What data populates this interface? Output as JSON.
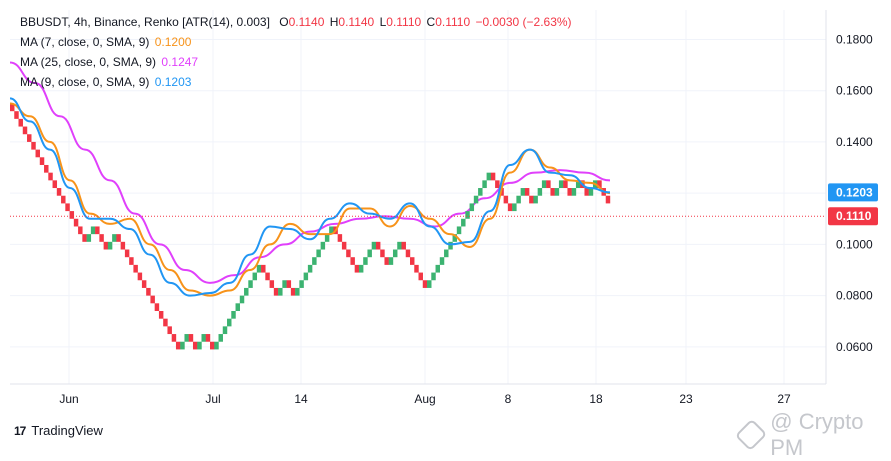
{
  "header": {
    "symbol_line": "BBUSDT, 4h, Binance, Renko [ATR(14), 0.003]",
    "o_label": "O",
    "o_value": "0.1140",
    "h_label": "H",
    "h_value": "0.1140",
    "l_label": "L",
    "l_value": "0.1110",
    "c_label": "C",
    "c_value": "0.1110",
    "change": "−0.0030 (−2.63%)"
  },
  "indicators": [
    {
      "label": "MA (7, close, 0, SMA, 9)",
      "value": "0.1200",
      "color": "#f7931a"
    },
    {
      "label": "MA (25, close, 0, SMA, 9)",
      "value": "0.1247",
      "color": "#e040fb"
    },
    {
      "label": "MA (9, close, 0, SMA, 9)",
      "value": "0.1203",
      "color": "#2196f3"
    }
  ],
  "colors": {
    "up": "#26a69a",
    "up_bright": "#3cb371",
    "down": "#f23645",
    "last_price_line": "#f23645"
  },
  "branding": {
    "tradingview": "TradingView",
    "watermark": "@ Crypto PM"
  },
  "chart_data": {
    "type": "line",
    "title": "BBUSDT, 4h, Binance, Renko [ATR(14), 0.003]",
    "x_tick_labels": [
      "Jun",
      "Jul",
      "14",
      "Aug",
      "8",
      "18",
      "23",
      "27"
    ],
    "y_tick_labels": [
      "0.1800",
      "0.1600",
      "0.1400",
      "0.1200",
      "0.1000",
      "0.0800",
      "0.0600"
    ],
    "ylim": [
      0.0455,
      0.1915
    ],
    "price_labels": [
      {
        "name": "MA (9, close, 0, SMA, 9)",
        "text": "0.1203",
        "value": 0.1203,
        "color": "#2196f3"
      },
      {
        "name": "last",
        "text": "0.1110",
        "value": 0.111,
        "color": "#f23645"
      }
    ],
    "renko_box_size": 0.003,
    "renko_bricks": [
      {
        "dir": "down",
        "count": 18
      },
      {
        "dir": "up",
        "count": 2
      },
      {
        "dir": "down",
        "count": 3
      },
      {
        "dir": "up",
        "count": 2
      },
      {
        "dir": "down",
        "count": 15
      },
      {
        "dir": "up",
        "count": 2
      },
      {
        "dir": "down",
        "count": 2
      },
      {
        "dir": "up",
        "count": 2
      },
      {
        "dir": "down",
        "count": 2
      },
      {
        "dir": "up",
        "count": 11
      },
      {
        "dir": "down",
        "count": 4
      },
      {
        "dir": "up",
        "count": 2
      },
      {
        "dir": "down",
        "count": 2
      },
      {
        "dir": "up",
        "count": 9
      },
      {
        "dir": "down",
        "count": 6
      },
      {
        "dir": "up",
        "count": 4
      },
      {
        "dir": "down",
        "count": 3
      },
      {
        "dir": "up",
        "count": 3
      },
      {
        "dir": "down",
        "count": 6
      },
      {
        "dir": "up",
        "count": 15
      },
      {
        "dir": "down",
        "count": 5
      },
      {
        "dir": "up",
        "count": 3
      },
      {
        "dir": "down",
        "count": 2
      },
      {
        "dir": "up",
        "count": 3
      },
      {
        "dir": "down",
        "count": 2
      },
      {
        "dir": "up",
        "count": 2
      },
      {
        "dir": "down",
        "count": 2
      },
      {
        "dir": "up",
        "count": 2
      },
      {
        "dir": "down",
        "count": 2
      },
      {
        "dir": "up",
        "count": 2
      },
      {
        "dir": "down",
        "count": 3
      }
    ],
    "series": [
      {
        "name": "MA (7, close, 0, SMA, 9)",
        "color": "#f7931a",
        "values": [
          0.155,
          0.15,
          0.14,
          0.125,
          0.112,
          0.108,
          0.11,
          0.1,
          0.09,
          0.082,
          0.08,
          0.082,
          0.09,
          0.1,
          0.108,
          0.104,
          0.104,
          0.114,
          0.114,
          0.107,
          0.115,
          0.11,
          0.104,
          0.099,
          0.11,
          0.128,
          0.137,
          0.13,
          0.125,
          0.124,
          0.12
        ]
      },
      {
        "name": "MA (25, close, 0, SMA, 9)",
        "color": "#e040fb",
        "values": [
          0.171,
          0.163,
          0.15,
          0.137,
          0.125,
          0.112,
          0.1,
          0.09,
          0.085,
          0.088,
          0.095,
          0.1,
          0.105,
          0.108,
          0.11,
          0.111,
          0.11,
          0.107,
          0.112,
          0.118,
          0.124,
          0.128,
          0.129,
          0.128,
          0.125
        ]
      },
      {
        "name": "MA (9, close, 0, SMA, 9)",
        "color": "#2196f3",
        "values": [
          0.157,
          0.148,
          0.137,
          0.122,
          0.11,
          0.11,
          0.106,
          0.096,
          0.085,
          0.08,
          0.081,
          0.085,
          0.096,
          0.107,
          0.106,
          0.102,
          0.11,
          0.116,
          0.112,
          0.11,
          0.116,
          0.107,
          0.1,
          0.101,
          0.113,
          0.131,
          0.137,
          0.128,
          0.127,
          0.122,
          0.1203
        ]
      }
    ]
  }
}
